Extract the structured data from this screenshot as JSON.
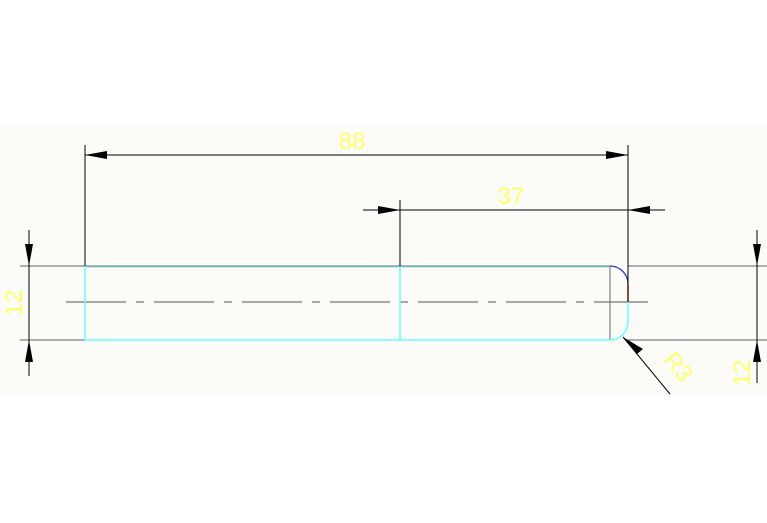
{
  "drawing": {
    "dimensions": {
      "overall_length": "88",
      "end_length": "37",
      "left_height": "12",
      "right_height": "12",
      "radius": "R3"
    },
    "colors": {
      "background": "#fbfcf8",
      "outline": "#66ffff",
      "dimension_lines": "#000000",
      "extension_lines": "#808080",
      "dimension_text": "#ffff66",
      "arc_top": "#3333cc",
      "end_segment": "#ff3333"
    }
  }
}
